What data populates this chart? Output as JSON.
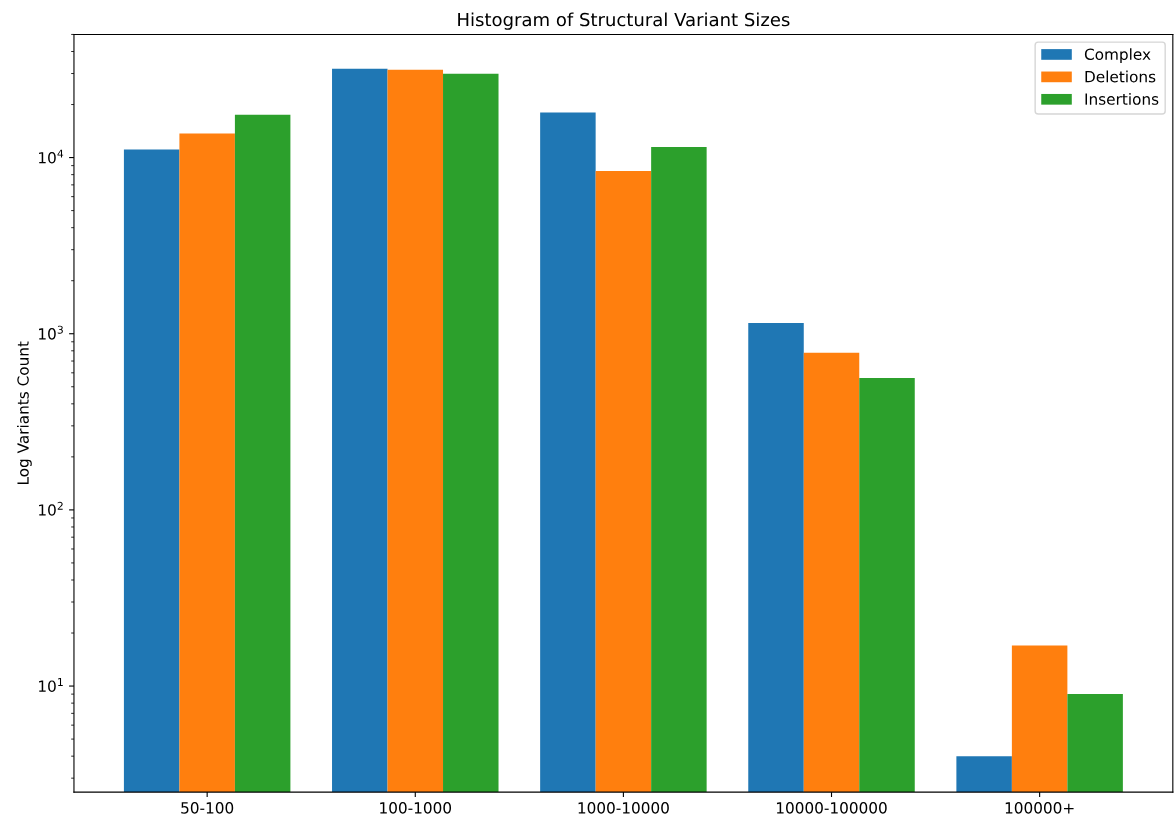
{
  "chart_data": {
    "type": "bar",
    "title": "Histogram of Structural Variant Sizes",
    "ylabel": "Log Variants Count",
    "categories": [
      "50-100",
      "100-1000",
      "1000-10000",
      "10000-100000",
      "100000+"
    ],
    "series": [
      {
        "name": "Complex",
        "color": "#1f77b4",
        "values": [
          11100,
          31900,
          18000,
          1150,
          4
        ]
      },
      {
        "name": "Deletions",
        "color": "#ff7f0e",
        "values": [
          13700,
          31500,
          8400,
          780,
          17
        ]
      },
      {
        "name": "Insertions",
        "color": "#2ca02c",
        "values": [
          17500,
          29900,
          11500,
          560,
          9
        ]
      }
    ],
    "log": "y",
    "ylim": [
      2.5,
      50000
    ],
    "yticks": [
      {
        "value": 10,
        "label": "10$^{1}$"
      },
      {
        "value": 100,
        "label": "10$^{2}$"
      },
      {
        "value": 1000,
        "label": "10$^{3}$"
      },
      {
        "value": 10000,
        "label": "10$^{4}$"
      }
    ],
    "legend": "top right",
    "grid": false
  }
}
